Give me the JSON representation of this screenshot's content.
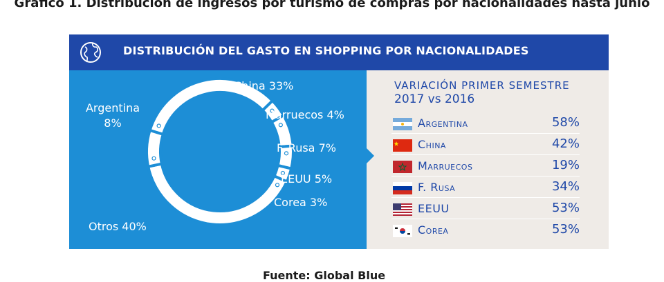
{
  "figure_title": "Gráfico 1. Distribución de ingresos por turismo de compras por nacionalidades hasta junio",
  "banner": {
    "icon": "globe-icon",
    "title": "DISTRIBUCIÓN DEL GASTO EN SHOPPING POR NACIONALIDADES"
  },
  "colors": {
    "banner": "#1f48a8",
    "left_panel": "#1d8ed6",
    "right_panel": "#efebe7",
    "text_accent": "#1f48a8"
  },
  "chart_data": [
    {
      "type": "pie",
      "title": "",
      "categories": [
        "China",
        "Marruecos",
        "F. Rusa",
        "EEUU",
        "Corea",
        "Otros",
        "Argentina"
      ],
      "values": [
        33,
        4,
        7,
        5,
        3,
        40,
        8
      ],
      "labels": [
        "China 33%",
        "Marruecos 4%",
        "F. Rusa 7%",
        "EEUU 5%",
        "Corea 3%",
        "Otros 40%",
        "Argentina 8%"
      ],
      "unit": "%"
    },
    {
      "type": "table",
      "title": "VARIACIÓN PRIMER SEMESTRE",
      "subtitle": "2017 vs 2016",
      "rows": [
        {
          "country": "Argentina",
          "flag": "argentina-flag-icon",
          "value": "58%"
        },
        {
          "country": "China",
          "flag": "china-flag-icon",
          "value": "42%"
        },
        {
          "country": "Marruecos",
          "flag": "morocco-flag-icon",
          "value": "19%"
        },
        {
          "country": "F. Rusa",
          "flag": "russia-flag-icon",
          "value": "34%"
        },
        {
          "country": "EEUU",
          "flag": "usa-flag-icon",
          "value": "53%"
        },
        {
          "country": "Corea",
          "flag": "korea-flag-icon",
          "value": "53%"
        }
      ]
    }
  ],
  "source": "Fuente: Global Blue"
}
